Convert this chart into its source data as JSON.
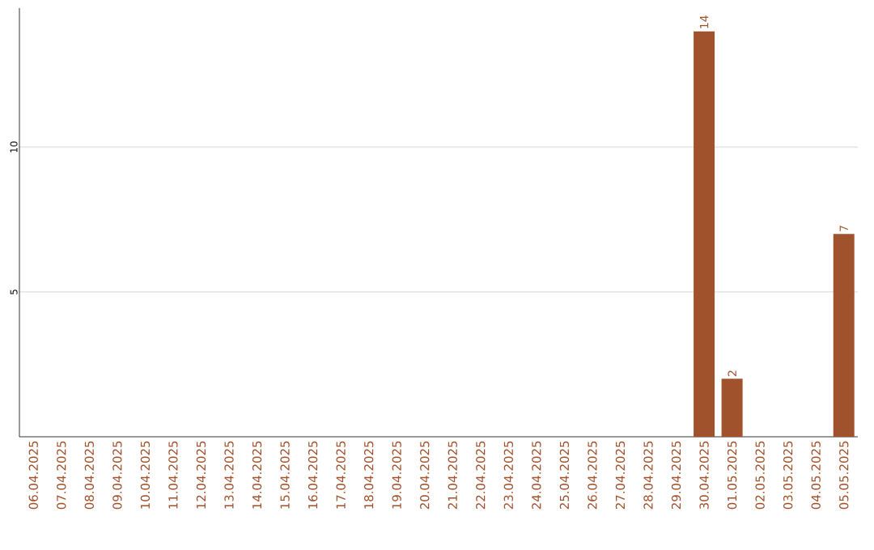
{
  "chart_data": {
    "type": "bar",
    "categories": [
      "06.04.2025",
      "07.04.2025",
      "08.04.2025",
      "09.04.2025",
      "10.04.2025",
      "11.04.2025",
      "12.04.2025",
      "13.04.2025",
      "14.04.2025",
      "15.04.2025",
      "16.04.2025",
      "17.04.2025",
      "18.04.2025",
      "19.04.2025",
      "20.04.2025",
      "21.04.2025",
      "22.04.2025",
      "23.04.2025",
      "24.04.2025",
      "25.04.2025",
      "26.04.2025",
      "27.04.2025",
      "28.04.2025",
      "29.04.2025",
      "30.04.2025",
      "01.05.2025",
      "02.05.2025",
      "03.05.2025",
      "04.05.2025",
      "05.05.2025"
    ],
    "values": [
      0,
      0,
      0,
      0,
      0,
      0,
      0,
      0,
      0,
      0,
      0,
      0,
      0,
      0,
      0,
      0,
      0,
      0,
      0,
      0,
      0,
      0,
      0,
      0,
      14,
      2,
      0,
      0,
      0,
      7
    ],
    "value_labels": [
      null,
      null,
      null,
      null,
      null,
      null,
      null,
      null,
      null,
      null,
      null,
      null,
      null,
      null,
      null,
      null,
      null,
      null,
      null,
      null,
      null,
      null,
      null,
      null,
      "14",
      "2",
      null,
      null,
      null,
      "7"
    ],
    "color": "#a0522d",
    "ylim": [
      0,
      14.8
    ],
    "yticks": [
      5,
      10
    ],
    "grid": "y"
  }
}
